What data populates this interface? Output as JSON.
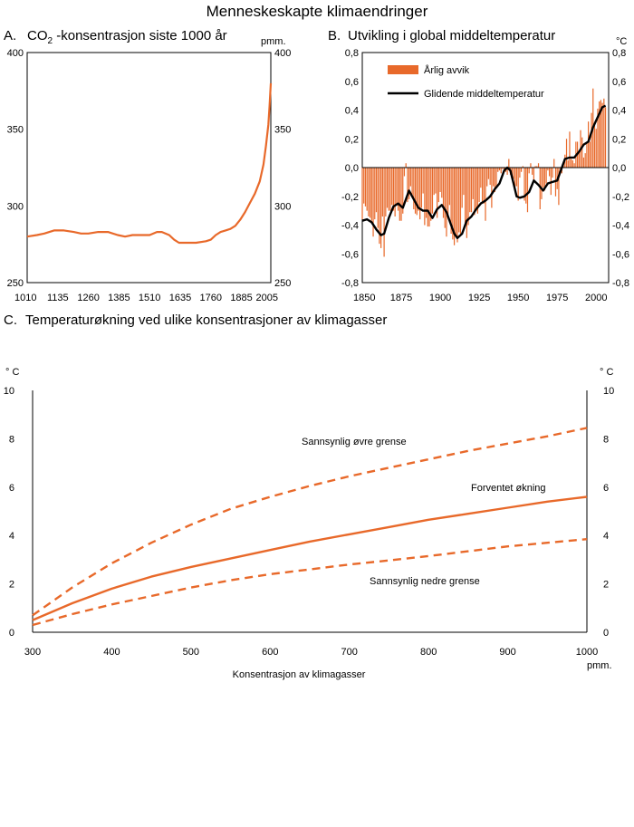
{
  "title": "Menneskeskapte klimaendringer",
  "colors": {
    "accent": "#e8692a",
    "black": "#000000"
  },
  "panels": {
    "a": {
      "letter": "A.",
      "title_pre": "CO",
      "title_sub": "2",
      "title_post": " -konsentrasjon siste 1000 år",
      "unit": "pmm."
    },
    "b": {
      "letter": "B.",
      "title": "Utvikling i global middeltemperatur",
      "unit": "°C"
    },
    "c": {
      "letter": "C.",
      "title": "Temperaturøkning ved ulike konsentrasjoner av klimagasser",
      "unit_left": "° C",
      "unit_right": "° C",
      "x_unit": "pmm."
    }
  },
  "chart_data": [
    {
      "id": "co2",
      "type": "line",
      "title": "CO2 -konsentrasjon siste 1000 år",
      "ylabel_right": "pmm.",
      "xlim": [
        1010,
        2005
      ],
      "ylim": [
        250,
        400
      ],
      "x_ticks": [
        1010,
        1135,
        1260,
        1385,
        1510,
        1635,
        1760,
        1885,
        2005
      ],
      "y_ticks": [
        250,
        300,
        350,
        400
      ],
      "grid": false,
      "series": [
        {
          "color": "#e8692a",
          "x": [
            1010,
            1050,
            1080,
            1120,
            1160,
            1200,
            1230,
            1260,
            1300,
            1340,
            1380,
            1410,
            1440,
            1470,
            1510,
            1540,
            1560,
            1590,
            1610,
            1630,
            1660,
            1700,
            1740,
            1760,
            1780,
            1800,
            1820,
            1840,
            1860,
            1880,
            1900,
            1920,
            1940,
            1960,
            1975,
            1985,
            1995,
            2000,
            2005
          ],
          "y": [
            280,
            281,
            282,
            284,
            284,
            283,
            282,
            282,
            283,
            283,
            281,
            280,
            281,
            281,
            281,
            283,
            283,
            281,
            278,
            276,
            276,
            276,
            277,
            278,
            281,
            283,
            284,
            285,
            287,
            291,
            296,
            302,
            308,
            316,
            327,
            339,
            353,
            365,
            380
          ]
        }
      ]
    },
    {
      "id": "temp",
      "type": "bar",
      "title": "Utvikling i global middeltemperatur",
      "ylabel_right": "°C",
      "xlim": [
        1850,
        2008
      ],
      "ylim": [
        -0.8,
        0.8
      ],
      "x_ticks": [
        1850,
        1875,
        1900,
        1925,
        1950,
        1975,
        2000
      ],
      "y_ticks": [
        -0.8,
        -0.6,
        -0.4,
        -0.2,
        0.0,
        0.2,
        0.4,
        0.6,
        0.8
      ],
      "y_tick_labels": [
        "-0,8",
        "-0,6",
        "-0,4",
        "-0,2",
        "0,0",
        "0,2",
        "0,4",
        "0,6",
        "0,8"
      ],
      "legend": {
        "position": "top-left",
        "entries": [
          "Årlig avvik",
          "Glidende middeltemperatur"
        ]
      },
      "series": [
        {
          "name": "Årlig avvik",
          "color": "#e8692a",
          "x": [
            1850,
            1851,
            1852,
            1853,
            1854,
            1855,
            1856,
            1857,
            1858,
            1859,
            1860,
            1861,
            1862,
            1863,
            1864,
            1865,
            1866,
            1867,
            1868,
            1869,
            1870,
            1871,
            1872,
            1873,
            1874,
            1875,
            1876,
            1877,
            1878,
            1879,
            1880,
            1881,
            1882,
            1883,
            1884,
            1885,
            1886,
            1887,
            1888,
            1889,
            1890,
            1891,
            1892,
            1893,
            1894,
            1895,
            1896,
            1897,
            1898,
            1899,
            1900,
            1901,
            1902,
            1903,
            1904,
            1905,
            1906,
            1907,
            1908,
            1909,
            1910,
            1911,
            1912,
            1913,
            1914,
            1915,
            1916,
            1917,
            1918,
            1919,
            1920,
            1921,
            1922,
            1923,
            1924,
            1925,
            1926,
            1927,
            1928,
            1929,
            1930,
            1931,
            1932,
            1933,
            1934,
            1935,
            1936,
            1937,
            1938,
            1939,
            1940,
            1941,
            1942,
            1943,
            1944,
            1945,
            1946,
            1947,
            1948,
            1949,
            1950,
            1951,
            1952,
            1953,
            1954,
            1955,
            1956,
            1957,
            1958,
            1959,
            1960,
            1961,
            1962,
            1963,
            1964,
            1965,
            1966,
            1967,
            1968,
            1969,
            1970,
            1971,
            1972,
            1973,
            1974,
            1975,
            1976,
            1977,
            1978,
            1979,
            1980,
            1981,
            1982,
            1983,
            1984,
            1985,
            1986,
            1987,
            1988,
            1989,
            1990,
            1991,
            1992,
            1993,
            1994,
            1995,
            1996,
            1997,
            1998,
            1999,
            2000,
            2001,
            2002,
            2003,
            2004,
            2005,
            2006
          ],
          "values": [
            -0.36,
            -0.25,
            -0.27,
            -0.3,
            -0.34,
            -0.35,
            -0.37,
            -0.48,
            -0.36,
            -0.31,
            -0.42,
            -0.53,
            -0.56,
            -0.34,
            -0.62,
            -0.34,
            -0.28,
            -0.3,
            -0.3,
            -0.26,
            -0.3,
            -0.34,
            -0.26,
            -0.3,
            -0.37,
            -0.37,
            -0.32,
            -0.06,
            0.03,
            -0.24,
            -0.22,
            -0.13,
            -0.19,
            -0.29,
            -0.32,
            -0.33,
            -0.3,
            -0.36,
            -0.28,
            -0.18,
            -0.4,
            -0.35,
            -0.41,
            -0.41,
            -0.37,
            -0.32,
            -0.19,
            -0.18,
            -0.35,
            -0.24,
            -0.17,
            -0.21,
            -0.35,
            -0.42,
            -0.48,
            -0.34,
            -0.26,
            -0.46,
            -0.5,
            -0.54,
            -0.48,
            -0.52,
            -0.45,
            -0.46,
            -0.28,
            -0.19,
            -0.39,
            -0.49,
            -0.4,
            -0.31,
            -0.31,
            -0.22,
            -0.33,
            -0.3,
            -0.32,
            -0.24,
            -0.14,
            -0.25,
            -0.25,
            -0.37,
            -0.13,
            -0.08,
            -0.12,
            -0.28,
            -0.13,
            -0.17,
            -0.13,
            -0.03,
            -0.02,
            -0.04,
            -0.01,
            -0.02,
            -0.03,
            -0.05,
            0.06,
            -0.05,
            -0.05,
            -0.08,
            -0.13,
            -0.13,
            -0.23,
            -0.07,
            -0.03,
            0.01,
            -0.23,
            -0.25,
            -0.31,
            -0.04,
            0.03,
            -0.05,
            -0.1,
            0.01,
            0.01,
            0.03,
            -0.29,
            -0.22,
            -0.14,
            -0.16,
            -0.11,
            -0.02,
            -0.06,
            -0.19,
            -0.07,
            0.06,
            -0.2,
            -0.15,
            -0.26,
            -0.01,
            -0.04,
            0.03,
            0.09,
            0.2,
            0.05,
            0.25,
            0.06,
            0.05,
            0.03,
            0.18,
            0.18,
            0.11,
            0.26,
            0.21,
            0.07,
            0.1,
            0.17,
            0.32,
            0.18,
            0.38,
            0.55,
            0.31,
            0.27,
            0.41,
            0.46,
            0.47,
            0.45,
            0.48,
            0.42
          ]
        },
        {
          "name": "Glidende middeltemperatur",
          "color": "#000000",
          "x": [
            1850,
            1853,
            1856,
            1859,
            1862,
            1864,
            1867,
            1870,
            1873,
            1876,
            1878,
            1880,
            1883,
            1886,
            1889,
            1892,
            1895,
            1898,
            1901,
            1904,
            1907,
            1909,
            1911,
            1914,
            1917,
            1920,
            1923,
            1926,
            1929,
            1932,
            1935,
            1938,
            1941,
            1943,
            1945,
            1947,
            1949,
            1951,
            1954,
            1957,
            1960,
            1963,
            1966,
            1969,
            1972,
            1975,
            1977,
            1980,
            1983,
            1986,
            1989,
            1992,
            1995,
            1998,
            2001,
            2004,
            2006
          ],
          "values": [
            -0.37,
            -0.36,
            -0.38,
            -0.43,
            -0.47,
            -0.46,
            -0.35,
            -0.27,
            -0.25,
            -0.28,
            -0.22,
            -0.16,
            -0.22,
            -0.28,
            -0.3,
            -0.3,
            -0.35,
            -0.29,
            -0.26,
            -0.31,
            -0.4,
            -0.46,
            -0.49,
            -0.46,
            -0.37,
            -0.34,
            -0.29,
            -0.25,
            -0.23,
            -0.2,
            -0.15,
            -0.11,
            -0.02,
            0.0,
            -0.02,
            -0.11,
            -0.2,
            -0.21,
            -0.2,
            -0.17,
            -0.09,
            -0.12,
            -0.16,
            -0.11,
            -0.1,
            -0.09,
            -0.03,
            0.06,
            0.07,
            0.07,
            0.11,
            0.16,
            0.18,
            0.28,
            0.35,
            0.42,
            0.43
          ]
        }
      ]
    },
    {
      "id": "projection",
      "type": "line",
      "title": "Temperaturøkning ved ulike konsentrasjoner av klimagasser",
      "xlabel": "Konsentrasjon av klimagasser",
      "xlabel_unit": "pmm.",
      "ylabel": "°C",
      "xlim": [
        300,
        1000
      ],
      "ylim": [
        0,
        10
      ],
      "x_ticks": [
        300,
        400,
        500,
        600,
        700,
        800,
        900,
        1000
      ],
      "y_ticks": [
        0,
        2,
        4,
        6,
        8,
        10
      ],
      "series": [
        {
          "name": "Sannsynlig øvre grense",
          "style": "dashed",
          "color": "#e8692a",
          "x": [
            300,
            350,
            400,
            450,
            500,
            550,
            600,
            650,
            700,
            750,
            800,
            850,
            900,
            950,
            1000
          ],
          "y": [
            0.7,
            1.85,
            2.85,
            3.7,
            4.45,
            5.1,
            5.6,
            6.05,
            6.45,
            6.8,
            7.15,
            7.5,
            7.8,
            8.1,
            8.45
          ]
        },
        {
          "name": "Forventet økning",
          "style": "solid",
          "color": "#e8692a",
          "x": [
            300,
            350,
            400,
            450,
            500,
            550,
            600,
            650,
            700,
            750,
            800,
            850,
            900,
            950,
            1000
          ],
          "y": [
            0.5,
            1.2,
            1.8,
            2.3,
            2.7,
            3.05,
            3.4,
            3.75,
            4.05,
            4.35,
            4.65,
            4.9,
            5.15,
            5.4,
            5.6
          ]
        },
        {
          "name": "Sannsynlig nedre grense",
          "style": "dashed",
          "color": "#e8692a",
          "x": [
            300,
            350,
            400,
            450,
            500,
            550,
            600,
            650,
            700,
            750,
            800,
            850,
            900,
            950,
            1000
          ],
          "y": [
            0.3,
            0.75,
            1.15,
            1.5,
            1.85,
            2.15,
            2.4,
            2.6,
            2.8,
            2.97,
            3.15,
            3.35,
            3.55,
            3.7,
            3.85
          ]
        }
      ]
    }
  ]
}
